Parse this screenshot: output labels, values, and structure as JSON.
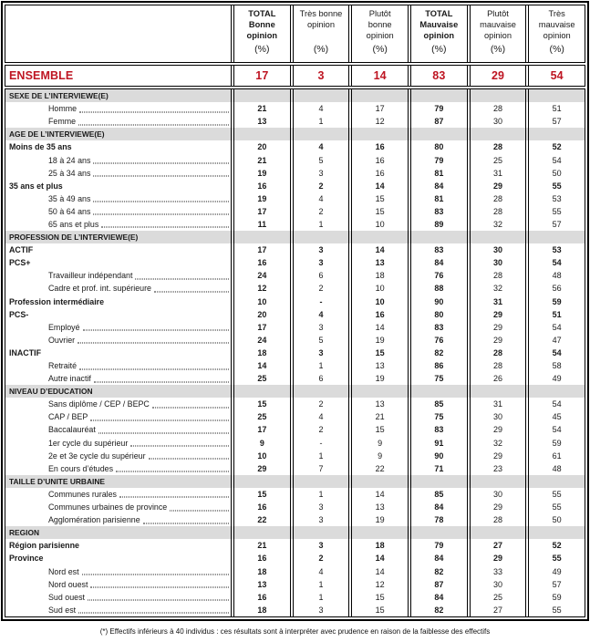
{
  "colors": {
    "accent_red": "#BE1522",
    "band_gray": "#DBDBDB",
    "border_black": "#000000"
  },
  "header": {
    "columns": [
      {
        "title": "TOTAL\nBonne\nopinion",
        "unit": "(%)",
        "emphasis": true
      },
      {
        "title": "Très bonne\nopinion",
        "unit": "(%)",
        "emphasis": false
      },
      {
        "title": "Plutôt\nbonne\nopinion",
        "unit": "(%)",
        "emphasis": false
      },
      {
        "title": "TOTAL\nMauvaise\nopinion",
        "unit": "(%)",
        "emphasis": true
      },
      {
        "title": "Plutôt\nmauvaise\nopinion",
        "unit": "(%)",
        "emphasis": false
      },
      {
        "title": "Très\nmauvaise\nopinion",
        "unit": "(%)",
        "emphasis": false
      }
    ]
  },
  "ensemble": {
    "label": "ENSEMBLE",
    "values": [
      "17",
      "3",
      "14",
      "83",
      "29",
      "54"
    ]
  },
  "rows": [
    {
      "type": "section",
      "label": "SEXE DE L’INTERVIEWE(E)"
    },
    {
      "type": "sub",
      "label": "Homme",
      "values": [
        "21",
        "4",
        "17",
        "79",
        "28",
        "51"
      ]
    },
    {
      "type": "sub",
      "label": "Femme",
      "values": [
        "13",
        "1",
        "12",
        "87",
        "30",
        "57"
      ]
    },
    {
      "type": "section",
      "label": "AGE DE L’INTERVIEWE(E)"
    },
    {
      "type": "bold",
      "label": "Moins de 35 ans",
      "values": [
        "20",
        "4",
        "16",
        "80",
        "28",
        "52"
      ]
    },
    {
      "type": "sub",
      "label": "18 à 24 ans",
      "values": [
        "21",
        "5",
        "16",
        "79",
        "25",
        "54"
      ]
    },
    {
      "type": "sub",
      "label": "25 à 34 ans",
      "values": [
        "19",
        "3",
        "16",
        "81",
        "31",
        "50"
      ]
    },
    {
      "type": "bold",
      "label": "35 ans et plus",
      "values": [
        "16",
        "2",
        "14",
        "84",
        "29",
        "55"
      ]
    },
    {
      "type": "sub",
      "label": "35 à 49 ans",
      "values": [
        "19",
        "4",
        "15",
        "81",
        "28",
        "53"
      ]
    },
    {
      "type": "sub",
      "label": "50 à 64 ans",
      "values": [
        "17",
        "2",
        "15",
        "83",
        "28",
        "55"
      ]
    },
    {
      "type": "sub",
      "label": "65 ans et plus",
      "values": [
        "11",
        "1",
        "10",
        "89",
        "32",
        "57"
      ]
    },
    {
      "type": "section",
      "label": "PROFESSION DE L’INTERVIEWE(E)"
    },
    {
      "type": "bold",
      "label": "ACTIF",
      "values": [
        "17",
        "3",
        "14",
        "83",
        "30",
        "53"
      ]
    },
    {
      "type": "bold",
      "label": "PCS+",
      "values": [
        "16",
        "3",
        "13",
        "84",
        "30",
        "54"
      ]
    },
    {
      "type": "sub",
      "label": "Travailleur indépendant",
      "values": [
        "24",
        "6",
        "18",
        "76",
        "28",
        "48"
      ]
    },
    {
      "type": "sub",
      "label": "Cadre et prof. int. supérieure",
      "values": [
        "12",
        "2",
        "10",
        "88",
        "32",
        "56"
      ]
    },
    {
      "type": "bold",
      "label": "Profession intermédiaire",
      "values": [
        "10",
        "-",
        "10",
        "90",
        "31",
        "59"
      ]
    },
    {
      "type": "bold",
      "label": "PCS-",
      "values": [
        "20",
        "4",
        "16",
        "80",
        "29",
        "51"
      ]
    },
    {
      "type": "sub",
      "label": "Employé",
      "values": [
        "17",
        "3",
        "14",
        "83",
        "29",
        "54"
      ]
    },
    {
      "type": "sub",
      "label": "Ouvrier",
      "values": [
        "24",
        "5",
        "19",
        "76",
        "29",
        "47"
      ]
    },
    {
      "type": "bold",
      "label": "INACTIF",
      "values": [
        "18",
        "3",
        "15",
        "82",
        "28",
        "54"
      ]
    },
    {
      "type": "sub",
      "label": "Retraité",
      "values": [
        "14",
        "1",
        "13",
        "86",
        "28",
        "58"
      ]
    },
    {
      "type": "sub",
      "label": "Autre inactif",
      "values": [
        "25",
        "6",
        "19",
        "75",
        "26",
        "49"
      ]
    },
    {
      "type": "section",
      "label": "NIVEAU D’EDUCATION"
    },
    {
      "type": "sub",
      "label": "Sans diplôme / CEP / BEPC",
      "values": [
        "15",
        "2",
        "13",
        "85",
        "31",
        "54"
      ]
    },
    {
      "type": "sub",
      "label": "CAP / BEP",
      "values": [
        "25",
        "4",
        "21",
        "75",
        "30",
        "45"
      ]
    },
    {
      "type": "sub",
      "label": "Baccalauréat",
      "values": [
        "17",
        "2",
        "15",
        "83",
        "29",
        "54"
      ]
    },
    {
      "type": "sub",
      "label": "1er cycle du supérieur",
      "values": [
        "9",
        "-",
        "9",
        "91",
        "32",
        "59"
      ]
    },
    {
      "type": "sub",
      "label": "2e et 3e cycle du supérieur",
      "values": [
        "10",
        "1",
        "9",
        "90",
        "29",
        "61"
      ]
    },
    {
      "type": "sub",
      "label": "En cours d’études",
      "values": [
        "29",
        "7",
        "22",
        "71",
        "23",
        "48"
      ]
    },
    {
      "type": "section",
      "label": "TAILLE D’UNITE URBAINE"
    },
    {
      "type": "sub",
      "label": "Communes rurales",
      "values": [
        "15",
        "1",
        "14",
        "85",
        "30",
        "55"
      ]
    },
    {
      "type": "sub",
      "label": "Communes urbaines de province",
      "values": [
        "16",
        "3",
        "13",
        "84",
        "29",
        "55"
      ]
    },
    {
      "type": "sub",
      "label": "Agglomération parisienne",
      "values": [
        "22",
        "3",
        "19",
        "78",
        "28",
        "50"
      ]
    },
    {
      "type": "section",
      "label": "REGION"
    },
    {
      "type": "bold",
      "label": "Région parisienne",
      "values": [
        "21",
        "3",
        "18",
        "79",
        "27",
        "52"
      ]
    },
    {
      "type": "bold",
      "label": "Province",
      "values": [
        "16",
        "2",
        "14",
        "84",
        "29",
        "55"
      ]
    },
    {
      "type": "sub",
      "label": "Nord est",
      "values": [
        "18",
        "4",
        "14",
        "82",
        "33",
        "49"
      ]
    },
    {
      "type": "sub",
      "label": "Nord ouest",
      "values": [
        "13",
        "1",
        "12",
        "87",
        "30",
        "57"
      ]
    },
    {
      "type": "sub",
      "label": "Sud ouest",
      "values": [
        "16",
        "1",
        "15",
        "84",
        "25",
        "59"
      ]
    },
    {
      "type": "sub",
      "label": "Sud est",
      "values": [
        "18",
        "3",
        "15",
        "82",
        "27",
        "55"
      ]
    }
  ],
  "footnote": "(*) Effectifs inférieurs à 40 individus : ces résultats sont à interpréter avec prudence en raison de la faiblesse des effectifs"
}
